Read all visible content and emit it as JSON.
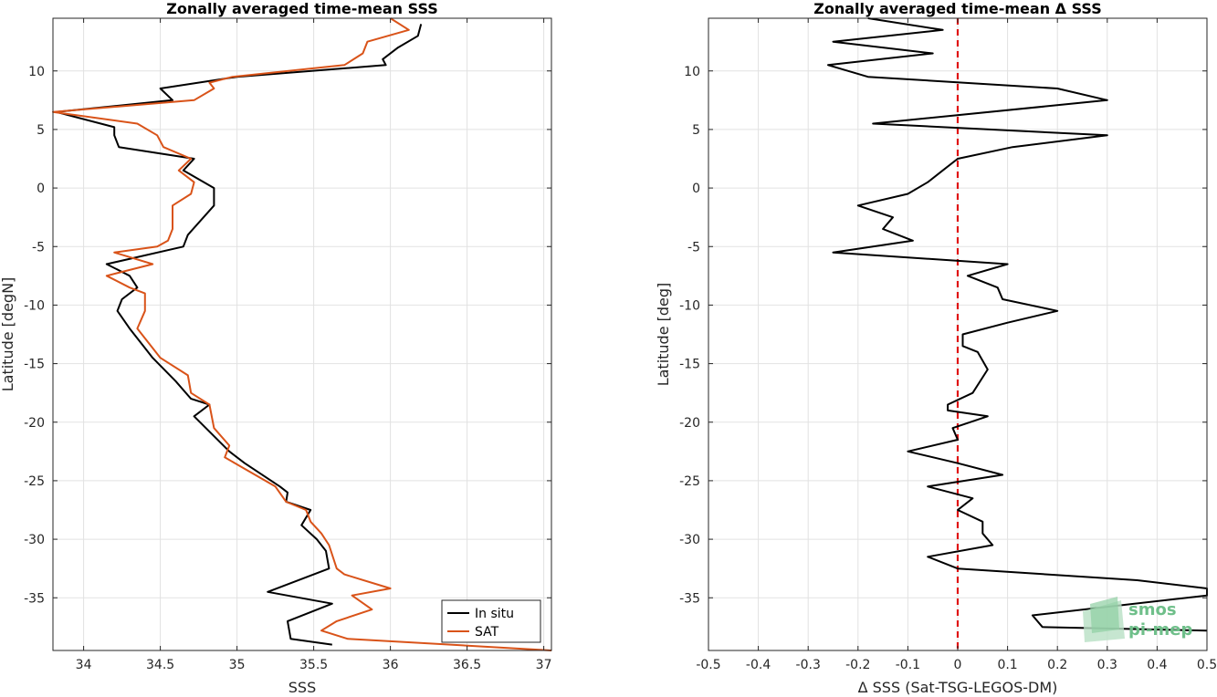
{
  "chart_data": [
    {
      "type": "line",
      "title": "Zonally averaged time-mean SSS",
      "xlabel": "SSS",
      "ylabel": "Latitude [degN]",
      "xlim": [
        33.8,
        37.05
      ],
      "ylim": [
        -39.5,
        14.5
      ],
      "xticks": [
        34,
        34.5,
        35,
        35.5,
        36,
        36.5,
        37
      ],
      "yticks": [
        10,
        5,
        0,
        -5,
        -10,
        -15,
        -20,
        -25,
        -30,
        -35
      ],
      "grid": true,
      "legend_position": "bottom-right",
      "series": [
        {
          "name": "In situ",
          "color": "#000000",
          "points": [
            [
              36.2,
              14.0
            ],
            [
              36.18,
              13.0
            ],
            [
              36.05,
              12.0
            ],
            [
              35.95,
              11.0
            ],
            [
              35.97,
              10.5
            ],
            [
              35.0,
              9.5
            ],
            [
              34.5,
              8.5
            ],
            [
              34.58,
              7.5
            ],
            [
              33.82,
              6.5
            ],
            [
              34.2,
              5.2
            ],
            [
              34.2,
              4.5
            ],
            [
              34.23,
              3.5
            ],
            [
              34.72,
              2.5
            ],
            [
              34.65,
              1.5
            ],
            [
              34.85,
              0.0
            ],
            [
              34.85,
              -1.5
            ],
            [
              34.68,
              -4.0
            ],
            [
              34.65,
              -5.0
            ],
            [
              34.15,
              -6.5
            ],
            [
              34.3,
              -7.5
            ],
            [
              34.35,
              -8.5
            ],
            [
              34.25,
              -9.5
            ],
            [
              34.22,
              -10.5
            ],
            [
              34.3,
              -12.0
            ],
            [
              34.45,
              -14.5
            ],
            [
              34.6,
              -16.5
            ],
            [
              34.7,
              -18.0
            ],
            [
              34.82,
              -18.5
            ],
            [
              34.72,
              -19.5
            ],
            [
              34.95,
              -22.5
            ],
            [
              35.05,
              -23.5
            ],
            [
              35.28,
              -25.5
            ],
            [
              35.33,
              -26.0
            ],
            [
              35.32,
              -26.8
            ],
            [
              35.48,
              -27.5
            ],
            [
              35.42,
              -28.8
            ],
            [
              35.52,
              -30.0
            ],
            [
              35.58,
              -31.0
            ],
            [
              35.6,
              -32.5
            ],
            [
              35.2,
              -34.5
            ],
            [
              35.62,
              -35.5
            ],
            [
              35.33,
              -37.0
            ],
            [
              35.35,
              -38.5
            ],
            [
              35.62,
              -39.0
            ]
          ]
        },
        {
          "name": "SAT",
          "color": "#d95319",
          "points": [
            [
              36.0,
              14.5
            ],
            [
              36.12,
              13.5
            ],
            [
              35.85,
              12.5
            ],
            [
              35.82,
              11.5
            ],
            [
              35.7,
              10.5
            ],
            [
              34.97,
              9.5
            ],
            [
              34.82,
              9.0
            ],
            [
              34.85,
              8.5
            ],
            [
              34.72,
              7.5
            ],
            [
              33.8,
              6.5
            ],
            [
              34.35,
              5.5
            ],
            [
              34.48,
              4.5
            ],
            [
              34.52,
              3.5
            ],
            [
              34.7,
              2.5
            ],
            [
              34.62,
              1.5
            ],
            [
              34.72,
              0.5
            ],
            [
              34.7,
              -0.5
            ],
            [
              34.58,
              -1.5
            ],
            [
              34.58,
              -3.5
            ],
            [
              34.55,
              -4.5
            ],
            [
              34.48,
              -5.0
            ],
            [
              34.2,
              -5.5
            ],
            [
              34.45,
              -6.5
            ],
            [
              34.15,
              -7.5
            ],
            [
              34.3,
              -8.5
            ],
            [
              34.4,
              -9.0
            ],
            [
              34.4,
              -10.5
            ],
            [
              34.35,
              -12.0
            ],
            [
              34.5,
              -14.5
            ],
            [
              34.68,
              -16.0
            ],
            [
              34.7,
              -17.5
            ],
            [
              34.82,
              -18.5
            ],
            [
              34.85,
              -20.5
            ],
            [
              34.95,
              -22.0
            ],
            [
              34.92,
              -23.0
            ],
            [
              35.25,
              -25.5
            ],
            [
              35.32,
              -26.8
            ],
            [
              35.45,
              -27.5
            ],
            [
              35.48,
              -28.5
            ],
            [
              35.55,
              -29.5
            ],
            [
              35.6,
              -30.5
            ],
            [
              35.65,
              -32.5
            ],
            [
              35.7,
              -33.0
            ],
            [
              36.0,
              -34.2
            ],
            [
              35.75,
              -34.8
            ],
            [
              35.88,
              -36.0
            ],
            [
              35.65,
              -37.0
            ],
            [
              35.55,
              -37.8
            ],
            [
              35.72,
              -38.5
            ],
            [
              37.05,
              -39.5
            ]
          ]
        }
      ]
    },
    {
      "type": "line",
      "title": "Zonally averaged time-mean Δ SSS",
      "xlabel": "Δ SSS (Sat-TSG-LEGOS-DM)",
      "ylabel": "Latitude [deg]",
      "xlim": [
        -0.5,
        0.5
      ],
      "ylim": [
        -39.5,
        14.5
      ],
      "xticks": [
        -0.5,
        -0.4,
        -0.3,
        -0.2,
        -0.1,
        0,
        0.1,
        0.2,
        0.3,
        0.4,
        0.5
      ],
      "yticks": [
        10,
        5,
        0,
        -5,
        -10,
        -15,
        -20,
        -25,
        -30,
        -35
      ],
      "grid": true,
      "reference_line": {
        "x": 0,
        "color": "#e01414",
        "style": "dashed"
      },
      "series": [
        {
          "name": "",
          "color": "#000000",
          "points": [
            [
              -0.18,
              14.5
            ],
            [
              -0.03,
              13.5
            ],
            [
              -0.25,
              12.5
            ],
            [
              -0.05,
              11.5
            ],
            [
              -0.26,
              10.5
            ],
            [
              -0.18,
              9.5
            ],
            [
              0.2,
              8.5
            ],
            [
              0.3,
              7.5
            ],
            [
              -0.17,
              5.5
            ],
            [
              0.3,
              4.5
            ],
            [
              0.11,
              3.5
            ],
            [
              0.0,
              2.5
            ],
            [
              -0.03,
              1.5
            ],
            [
              -0.06,
              0.5
            ],
            [
              -0.1,
              -0.5
            ],
            [
              -0.2,
              -1.5
            ],
            [
              -0.13,
              -2.5
            ],
            [
              -0.15,
              -3.5
            ],
            [
              -0.09,
              -4.5
            ],
            [
              -0.25,
              -5.5
            ],
            [
              0.1,
              -6.5
            ],
            [
              0.02,
              -7.5
            ],
            [
              0.08,
              -8.5
            ],
            [
              0.09,
              -9.5
            ],
            [
              0.2,
              -10.5
            ],
            [
              0.1,
              -11.5
            ],
            [
              0.01,
              -12.5
            ],
            [
              0.01,
              -13.5
            ],
            [
              0.04,
              -14.0
            ],
            [
              0.06,
              -15.5
            ],
            [
              0.03,
              -17.5
            ],
            [
              -0.02,
              -18.5
            ],
            [
              -0.02,
              -19.0
            ],
            [
              0.06,
              -19.5
            ],
            [
              -0.01,
              -20.5
            ],
            [
              0.0,
              -21.5
            ],
            [
              -0.1,
              -22.5
            ],
            [
              0.0,
              -23.5
            ],
            [
              0.09,
              -24.5
            ],
            [
              -0.06,
              -25.5
            ],
            [
              0.03,
              -26.5
            ],
            [
              0.0,
              -27.5
            ],
            [
              0.05,
              -28.5
            ],
            [
              0.05,
              -29.5
            ],
            [
              0.07,
              -30.5
            ],
            [
              -0.06,
              -31.5
            ],
            [
              0.0,
              -32.5
            ],
            [
              0.36,
              -33.5
            ],
            [
              0.5,
              -34.2
            ],
            [
              0.5,
              -34.8
            ],
            [
              0.15,
              -36.5
            ],
            [
              0.17,
              -37.5
            ],
            [
              0.5,
              -37.8
            ]
          ]
        }
      ]
    }
  ],
  "logo": {
    "line1": "smos",
    "line2": "pi-mep"
  }
}
